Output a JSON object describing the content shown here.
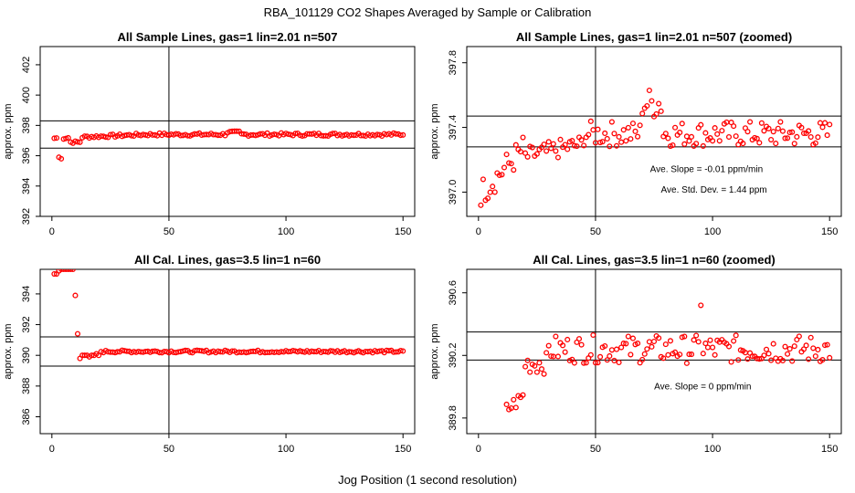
{
  "figure": {
    "title": "RBA_101129  CO2 Shapes Averaged by Sample or Calibration",
    "xlabel": "Jog Position (1 second resolution)"
  },
  "chart_data": [
    {
      "type": "scatter",
      "title": "All Sample Lines, gas=1 lin=2.01 n=507",
      "ylabel": "approx. ppm",
      "xlim": [
        -5,
        155
      ],
      "ylim": [
        392,
        403.2
      ],
      "xticks": [
        0,
        50,
        100,
        150
      ],
      "yticks": [
        392,
        394,
        396,
        398,
        400,
        402
      ],
      "vline": 50,
      "hlines": [
        398.3,
        396.5
      ],
      "annotations": [],
      "marker_color": "#ff0000",
      "series": [
        {
          "name": "sample",
          "x": [],
          "y": []
        }
      ]
    },
    {
      "type": "scatter",
      "title": "All Sample Lines, gas=1 lin=2.01 n=507 (zoomed)",
      "ylabel": "approx. ppm",
      "xlim": [
        -5,
        155
      ],
      "ylim": [
        396.85,
        397.9
      ],
      "xticks": [
        0,
        50,
        100,
        150
      ],
      "yticks": [
        397.0,
        397.4,
        397.8
      ],
      "vline": 50,
      "hlines": [
        397.47,
        397.28
      ],
      "annotations": [
        "Ave. Slope =  -0.01  ppm/min",
        "Ave. Std. Dev. =  1.44  ppm"
      ],
      "marker_color": "#ff0000",
      "series": [
        {
          "name": "sample-zoomed",
          "x": [],
          "y": []
        }
      ]
    },
    {
      "type": "scatter",
      "title": "All Cal. Lines, gas=3.5 lin=1 n=60",
      "ylabel": "approx. ppm",
      "xlim": [
        -5,
        155
      ],
      "ylim": [
        384.9,
        395.6
      ],
      "xticks": [
        0,
        50,
        100,
        150
      ],
      "yticks": [
        386,
        388,
        390,
        392,
        394
      ],
      "vline": 50,
      "hlines": [
        391.2,
        389.3
      ],
      "annotations": [],
      "marker_color": "#ff0000",
      "series": [
        {
          "name": "cal",
          "x": [],
          "y": []
        }
      ]
    },
    {
      "type": "scatter",
      "title": "All Cal. Lines, gas=3.5 lin=1 n=60 (zoomed)",
      "ylabel": "approx. ppm",
      "xlim": [
        -5,
        155
      ],
      "ylim": [
        389.7,
        390.75
      ],
      "xticks": [
        0,
        50,
        100,
        150
      ],
      "yticks": [
        389.8,
        390.2,
        390.6
      ],
      "vline": 50,
      "hlines": [
        390.35,
        390.17
      ],
      "annotations": [
        "Ave. Slope =  0  ppm/min"
      ],
      "marker_color": "#ff0000",
      "series": [
        {
          "name": "cal-zoomed",
          "x": [],
          "y": []
        }
      ]
    }
  ]
}
